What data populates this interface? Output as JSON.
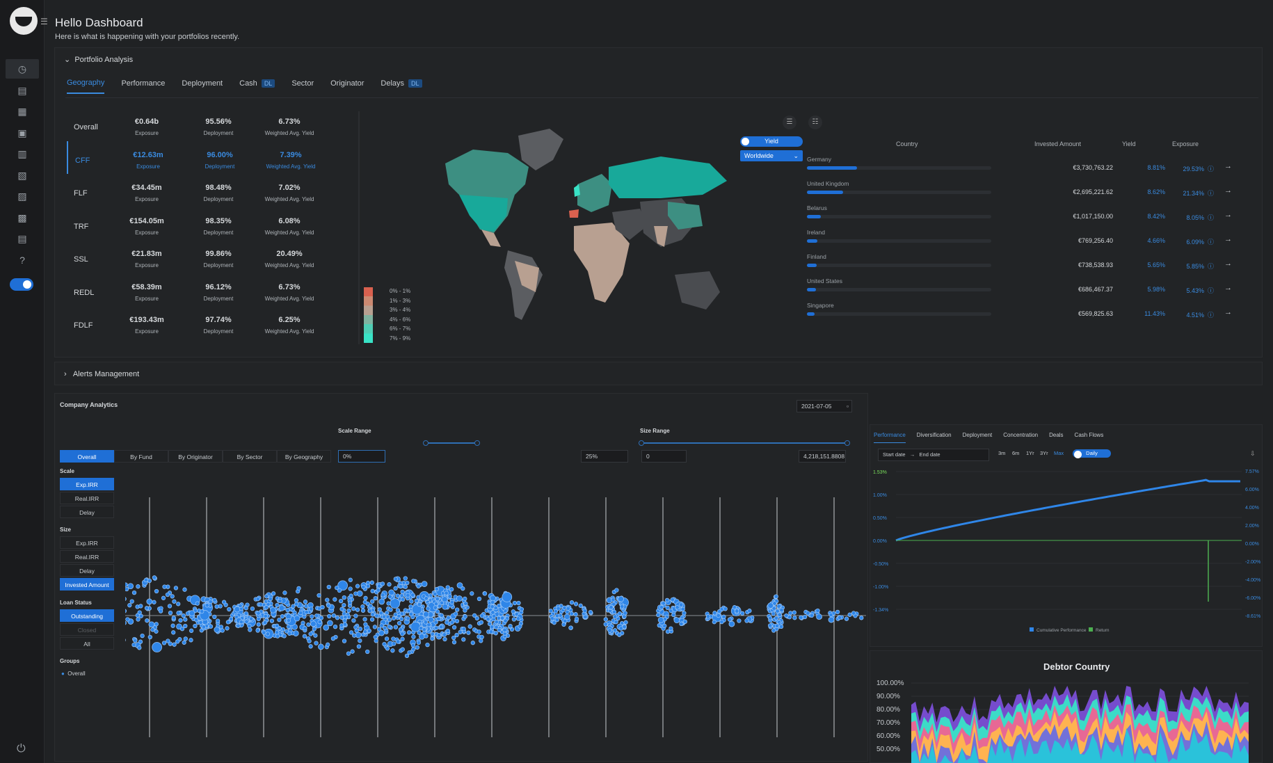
{
  "header": {
    "title": "Hello Dashboard",
    "subtitle": "Here is what is happening with your portfolios recently."
  },
  "sidebar": {
    "icons": [
      "speedometer-icon",
      "wallet-icon",
      "list-icon",
      "clipboard-icon",
      "building-icon",
      "search-doc-icon",
      "bar-chart-icon",
      "table-icon",
      "report-icon",
      "help-icon"
    ]
  },
  "portfolio": {
    "section_title": "Portfolio Analysis",
    "tabs": [
      {
        "label": "Geography",
        "badge": ""
      },
      {
        "label": "Performance",
        "badge": ""
      },
      {
        "label": "Deployment",
        "badge": ""
      },
      {
        "label": "Cash",
        "badge": "DL"
      },
      {
        "label": "Sector",
        "badge": ""
      },
      {
        "label": "Originator",
        "badge": ""
      },
      {
        "label": "Delays",
        "badge": "DL"
      }
    ],
    "funds": [
      {
        "name": "Overall",
        "exposure": "€0.64b",
        "deployment": "95.56%",
        "yield": "6.73%"
      },
      {
        "name": "CFF",
        "exposure": "€12.63m",
        "deployment": "96.00%",
        "yield": "7.39%"
      },
      {
        "name": "FLF",
        "exposure": "€34.45m",
        "deployment": "98.48%",
        "yield": "7.02%"
      },
      {
        "name": "TRF",
        "exposure": "€154.05m",
        "deployment": "98.35%",
        "yield": "6.08%"
      },
      {
        "name": "SSL",
        "exposure": "€21.83m",
        "deployment": "99.86%",
        "yield": "20.49%"
      },
      {
        "name": "REDL",
        "exposure": "€58.39m",
        "deployment": "96.12%",
        "yield": "6.73%"
      },
      {
        "name": "FDLF",
        "exposure": "€193.43m",
        "deployment": "97.74%",
        "yield": "6.25%"
      }
    ],
    "labels": {
      "exposure": "Exposure",
      "deployment": "Deployment",
      "yield": "Weighted Avg. Yield"
    },
    "legend": [
      "0% - 1%",
      "1% - 3%",
      "3% - 4%",
      "4% - 6%",
      "6% - 7%",
      "7% - 9%"
    ],
    "yield_toggle": "Yield",
    "region": "Worldwide",
    "country_headers": {
      "country": "Country",
      "amount": "Invested Amount",
      "yield": "Yield",
      "exposure": "Exposure"
    },
    "countries": [
      {
        "name": "Germany",
        "amount": "€3,730,763.22",
        "yield": "8.81%",
        "exposure": "29.53%",
        "share": 0.2953
      },
      {
        "name": "United Kingdom",
        "amount": "€2,695,221.62",
        "yield": "8.62%",
        "exposure": "21.34%",
        "share": 0.2134
      },
      {
        "name": "Belarus",
        "amount": "€1,017,150.00",
        "yield": "8.42%",
        "exposure": "8.05%",
        "share": 0.0805
      },
      {
        "name": "Ireland",
        "amount": "€769,256.40",
        "yield": "4.66%",
        "exposure": "6.09%",
        "share": 0.0609
      },
      {
        "name": "Finland",
        "amount": "€738,538.93",
        "yield": "5.65%",
        "exposure": "5.85%",
        "share": 0.0585
      },
      {
        "name": "United States",
        "amount": "€686,467.37",
        "yield": "5.98%",
        "exposure": "5.43%",
        "share": 0.0543
      },
      {
        "name": "Singapore",
        "amount": "€569,825.63",
        "yield": "11.43%",
        "exposure": "4.51%",
        "share": 0.0451
      }
    ],
    "colors": {
      "accent": "#1f6fd6",
      "map_high": "#18a99a",
      "map_mid": "#3d8f82",
      "map_low": "#b8a091",
      "map_none": "#4a4c50"
    }
  },
  "alerts": {
    "section_title": "Alerts Management"
  },
  "company": {
    "title": "Company Analytics",
    "date": "2021-07-05",
    "scale_range_label": "Scale Range",
    "size_range_label": "Size Range",
    "view_tabs": [
      "Overall",
      "By Fund",
      "By Originator",
      "By Sector",
      "By Geography"
    ],
    "scale_min": "0%",
    "scale_max": "25%",
    "size_min": "0",
    "size_max": "4,218,151.8808",
    "scale_label": "Scale",
    "scale_options": [
      "Exp.IRR",
      "Real.IRR",
      "Delay"
    ],
    "size_label": "Size",
    "size_options": [
      "Exp.IRR",
      "Real.IRR",
      "Delay",
      "Invested Amount"
    ],
    "loan_status_label": "Loan Status",
    "loan_status_options": [
      "Outstanding",
      "Closed",
      "All"
    ],
    "groups_label": "Groups",
    "group_item": "Overall"
  },
  "performance": {
    "tabs": [
      "Performance",
      "Diversification",
      "Deployment",
      "Concentration",
      "Deals",
      "Cash Flows"
    ],
    "start_date": "Start date",
    "end_date": "End date",
    "ranges": [
      "3m",
      "6m",
      "1Yr",
      "3Yr",
      "Max"
    ],
    "daily_label": "Daily",
    "left_ticks": [
      "1.53%",
      "1.00%",
      "0.50%",
      "0.00%",
      "-0.50%",
      "-1.00%",
      "-1.34%"
    ],
    "right_ticks": [
      "7.57%",
      "6.00%",
      "4.00%",
      "2.00%",
      "0.00%",
      "-2.00%",
      "-4.00%",
      "-6.00%",
      "-8.61%"
    ],
    "legend": [
      "Cumulative Performance",
      "Return"
    ]
  },
  "debtor": {
    "title": "Debtor Country",
    "ticks": [
      "100.00%",
      "90.00%",
      "80.00%",
      "70.00%",
      "60.00%",
      "50.00%"
    ]
  }
}
